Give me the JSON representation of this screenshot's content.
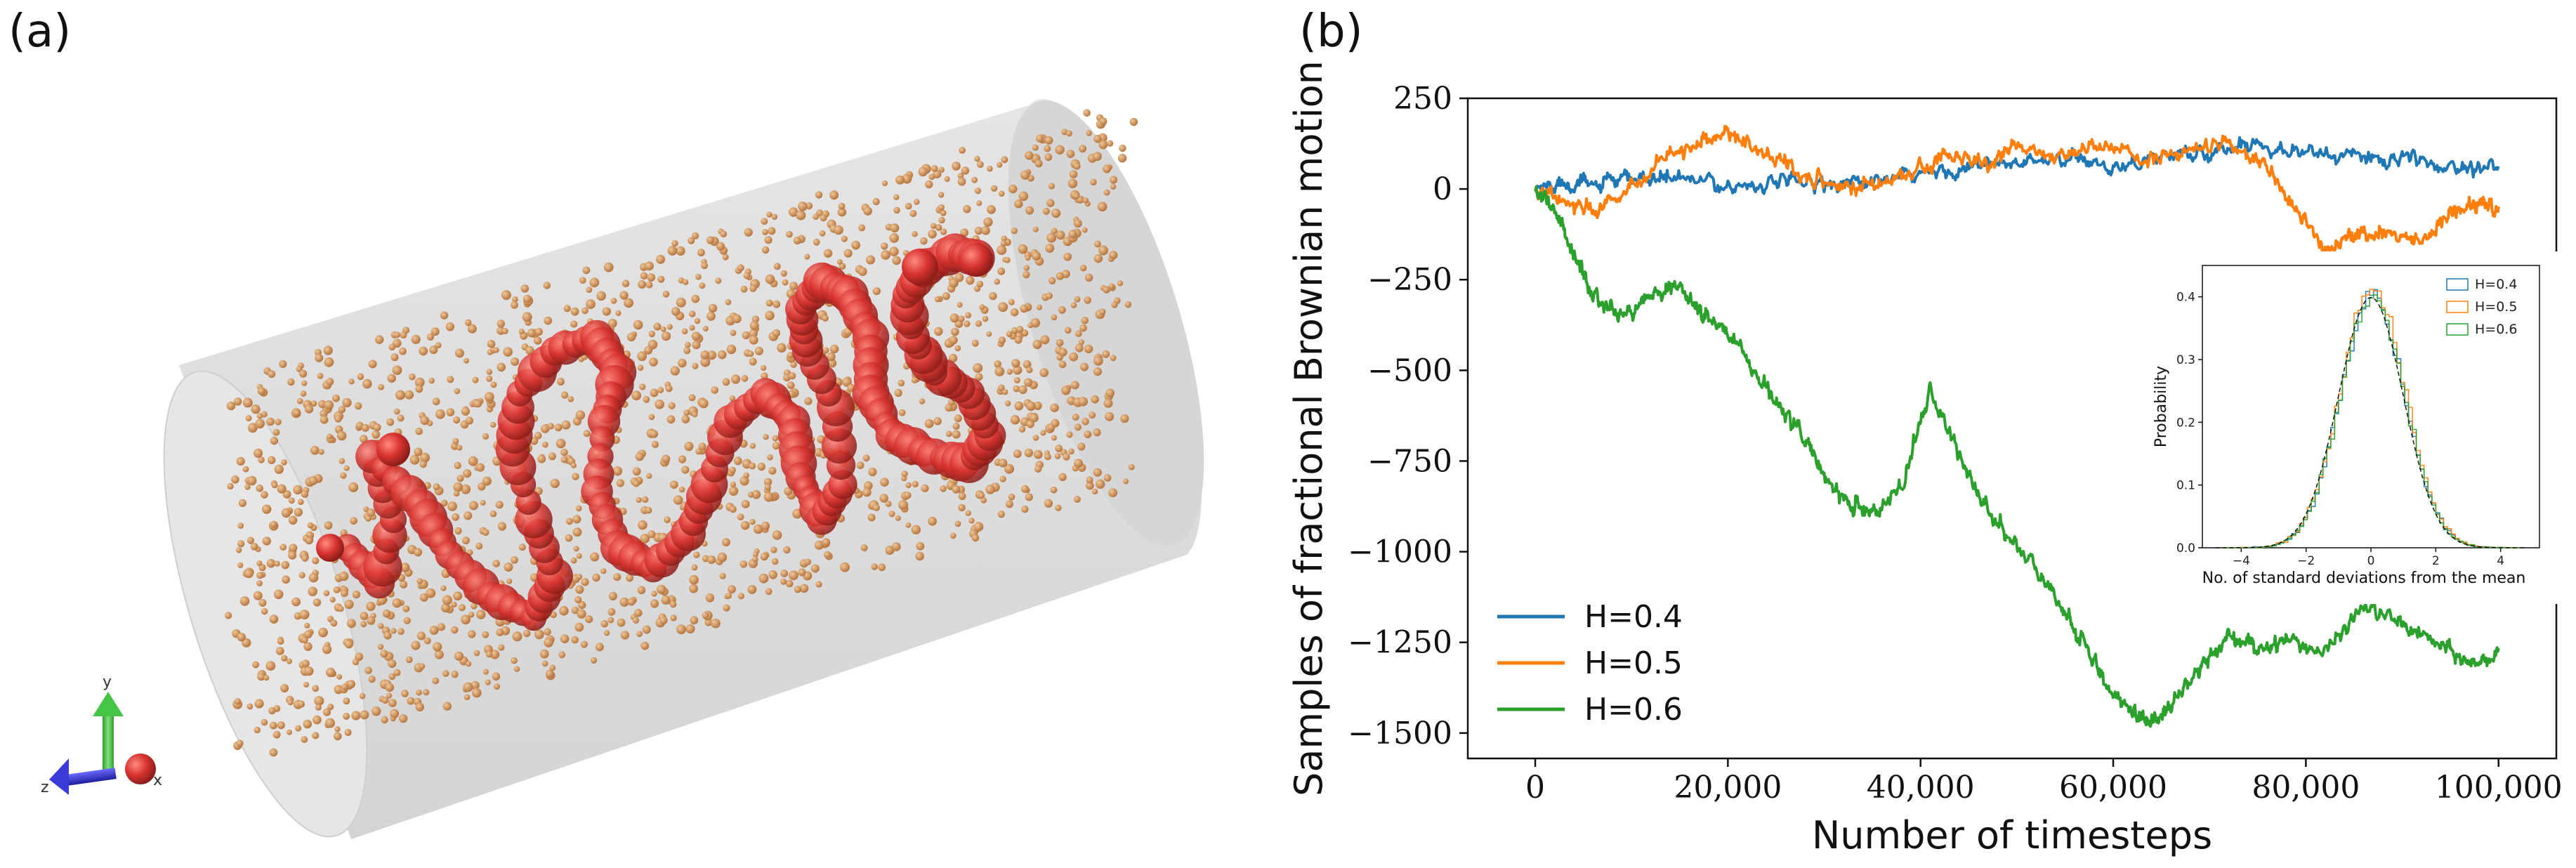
{
  "panel_a": {
    "label": "(a)",
    "axis_labels": {
      "y": "y",
      "z": "z",
      "x": "x"
    },
    "colors": {
      "cylinder": "#dcdcdc",
      "polymer": "#d8332f",
      "particles": "#c88a55"
    }
  },
  "panel_b": {
    "label": "(b)"
  },
  "chart_data": [
    {
      "type": "line",
      "title": "",
      "xlabel": "Number of timesteps",
      "ylabel": "Samples of fractional Brownian motion",
      "xlim": [
        -7000,
        106000
      ],
      "ylim": [
        -1570,
        250
      ],
      "xticks": [
        0,
        20000,
        40000,
        60000,
        80000,
        100000
      ],
      "xtick_labels": [
        "0",
        "20,000",
        "40,000",
        "60,000",
        "80,000",
        "100,000"
      ],
      "yticks": [
        250,
        0,
        -250,
        -500,
        -750,
        -1000,
        -1250,
        -1500
      ],
      "ytick_labels": [
        "250",
        "0",
        "−250",
        "−500",
        "−750",
        "−1000",
        "−1250",
        "−1500"
      ],
      "legend_position": "bottom-left",
      "series": [
        {
          "name": "H=0.4",
          "color": "#1f77b4",
          "x": [
            0,
            3000,
            6000,
            10000,
            14000,
            20000,
            25000,
            30000,
            35000,
            40000,
            45000,
            50000,
            55000,
            60000,
            65000,
            70000,
            75000,
            80000,
            85000,
            90000,
            95000,
            100000
          ],
          "y": [
            0,
            20,
            10,
            25,
            30,
            10,
            15,
            20,
            15,
            40,
            60,
            70,
            80,
            65,
            90,
            100,
            130,
            100,
            90,
            80,
            60,
            75
          ]
        },
        {
          "name": "H=0.5",
          "color": "#ff7f0e",
          "x": [
            0,
            3000,
            6000,
            9000,
            13000,
            17000,
            20000,
            24000,
            28000,
            32000,
            36000,
            40000,
            43000,
            47000,
            50000,
            55000,
            59000,
            63000,
            67000,
            72000,
            76000,
            79000,
            82000,
            85000,
            88000,
            92000,
            95000,
            98000,
            100000
          ],
          "y": [
            0,
            -30,
            -60,
            -20,
            80,
            130,
            160,
            90,
            40,
            0,
            20,
            60,
            90,
            70,
            110,
            90,
            130,
            80,
            100,
            120,
            60,
            -60,
            -160,
            -130,
            -120,
            -150,
            -70,
            -40,
            -60
          ]
        },
        {
          "name": "H=0.6",
          "color": "#2ca02c",
          "x": [
            0,
            2000,
            4000,
            6000,
            9000,
            12000,
            15000,
            18000,
            21000,
            24000,
            27000,
            30000,
            33000,
            35000,
            38000,
            41000,
            44000,
            47000,
            50000,
            53000,
            56000,
            59000,
            62000,
            64000,
            66000,
            69000,
            72000,
            75000,
            78000,
            82000,
            86000,
            90000,
            94000,
            97000,
            100000
          ],
          "y": [
            0,
            -60,
            -180,
            -300,
            -350,
            -290,
            -270,
            -360,
            -420,
            -560,
            -640,
            -790,
            -880,
            -900,
            -830,
            -560,
            -730,
            -890,
            -980,
            -1090,
            -1210,
            -1350,
            -1450,
            -1470,
            -1420,
            -1320,
            -1230,
            -1270,
            -1240,
            -1280,
            -1150,
            -1200,
            -1260,
            -1310,
            -1280
          ]
        }
      ]
    },
    {
      "type": "line",
      "title": "",
      "xlabel": "No. of standard deviations from the mean",
      "ylabel": "Probability",
      "xlim": [
        -5.2,
        5.2
      ],
      "ylim": [
        0,
        0.45
      ],
      "xticks": [
        -4,
        -2,
        0,
        2,
        4
      ],
      "xtick_labels": [
        "−4",
        "−2",
        "0",
        "2",
        "4"
      ],
      "yticks": [
        0.0,
        0.1,
        0.2,
        0.3,
        0.4
      ],
      "ytick_labels": [
        "0.0",
        "0.1",
        "0.2",
        "0.3",
        "0.4"
      ],
      "legend_position": "top-right",
      "series": [
        {
          "name": "H=0.4",
          "color": "#1f77b4",
          "peak": 0.4
        },
        {
          "name": "H=0.5",
          "color": "#ff7f0e",
          "peak": 0.41
        },
        {
          "name": "H=0.6",
          "color": "#2ca02c",
          "peak": 0.4
        }
      ]
    }
  ]
}
